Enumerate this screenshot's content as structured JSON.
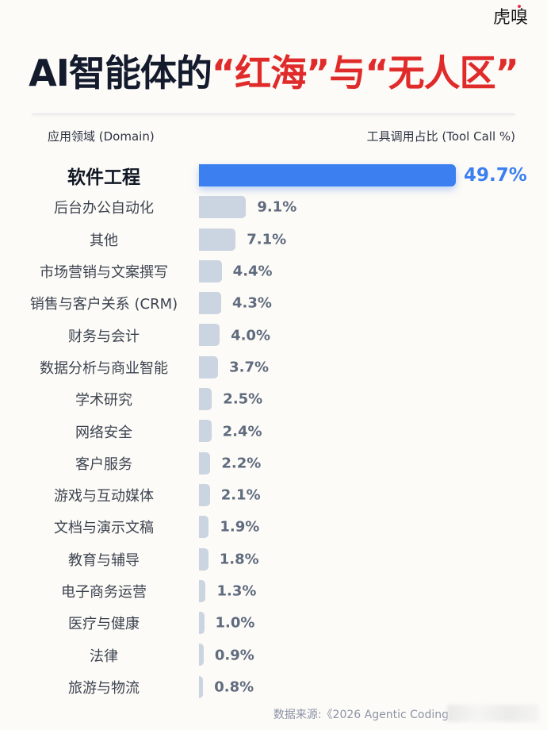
{
  "logo": {
    "text": "虎嗅"
  },
  "title": {
    "part1": "AI智能体的",
    "part2": "“红海”",
    "part3": "与",
    "part4": "“无人区”"
  },
  "headers": {
    "left": "应用领域 (Domain)",
    "right": "工具调用占比 (Tool Call %)"
  },
  "colors": {
    "highlight_bar": "#3b7ff0",
    "normal_bar": "#cbd4e1",
    "title_dark": "#141b2d",
    "title_red": "#e02b2b",
    "background": "#fdfbf7"
  },
  "rows": [
    {
      "label": "软件工程",
      "value": 49.7,
      "display": "49.7%"
    },
    {
      "label": "后台办公自动化",
      "value": 9.1,
      "display": "9.1%"
    },
    {
      "label": "其他",
      "value": 7.1,
      "display": "7.1%"
    },
    {
      "label": "市场营销与文案撰写",
      "value": 4.4,
      "display": "4.4%"
    },
    {
      "label": "销售与客户关系 (CRM)",
      "value": 4.3,
      "display": "4.3%"
    },
    {
      "label": "财务与会计",
      "value": 4.0,
      "display": "4.0%"
    },
    {
      "label": "数据分析与商业智能",
      "value": 3.7,
      "display": "3.7%"
    },
    {
      "label": "学术研究",
      "value": 2.5,
      "display": "2.5%"
    },
    {
      "label": "网络安全",
      "value": 2.4,
      "display": "2.4%"
    },
    {
      "label": "客户服务",
      "value": 2.2,
      "display": "2.2%"
    },
    {
      "label": "游戏与互动媒体",
      "value": 2.1,
      "display": "2.1%"
    },
    {
      "label": "文档与演示文稿",
      "value": 1.9,
      "display": "1.9%"
    },
    {
      "label": "教育与辅导",
      "value": 1.8,
      "display": "1.8%"
    },
    {
      "label": "电子商务运营",
      "value": 1.3,
      "display": "1.3%"
    },
    {
      "label": "医疗与健康",
      "value": 1.0,
      "display": "1.0%"
    },
    {
      "label": "法律",
      "value": 0.9,
      "display": "0.9%"
    },
    {
      "label": "旅游与物流",
      "value": 0.8,
      "display": "0.8%"
    }
  ],
  "source": "数据来源:《2026 Agentic Coding",
  "chart_data": {
    "type": "bar",
    "orientation": "horizontal",
    "title": "AI智能体的“红海”与“无人区”",
    "xlabel": "工具调用占比 (Tool Call %)",
    "ylabel": "应用领域 (Domain)",
    "categories": [
      "软件工程",
      "后台办公自动化",
      "其他",
      "市场营销与文案撰写",
      "销售与客户关系 (CRM)",
      "财务与会计",
      "数据分析与商业智能",
      "学术研究",
      "网络安全",
      "客户服务",
      "游戏与互动媒体",
      "文档与演示文稿",
      "教育与辅导",
      "电子商务运营",
      "医疗与健康",
      "法律",
      "旅游与物流"
    ],
    "values": [
      49.7,
      9.1,
      7.1,
      4.4,
      4.3,
      4.0,
      3.7,
      2.5,
      2.4,
      2.2,
      2.1,
      1.9,
      1.8,
      1.3,
      1.0,
      0.9,
      0.8
    ],
    "highlighted_category": "软件工程",
    "data_labels": true,
    "grid": false,
    "legend": "none",
    "source": "数据来源:《2026 Agentic Coding"
  }
}
